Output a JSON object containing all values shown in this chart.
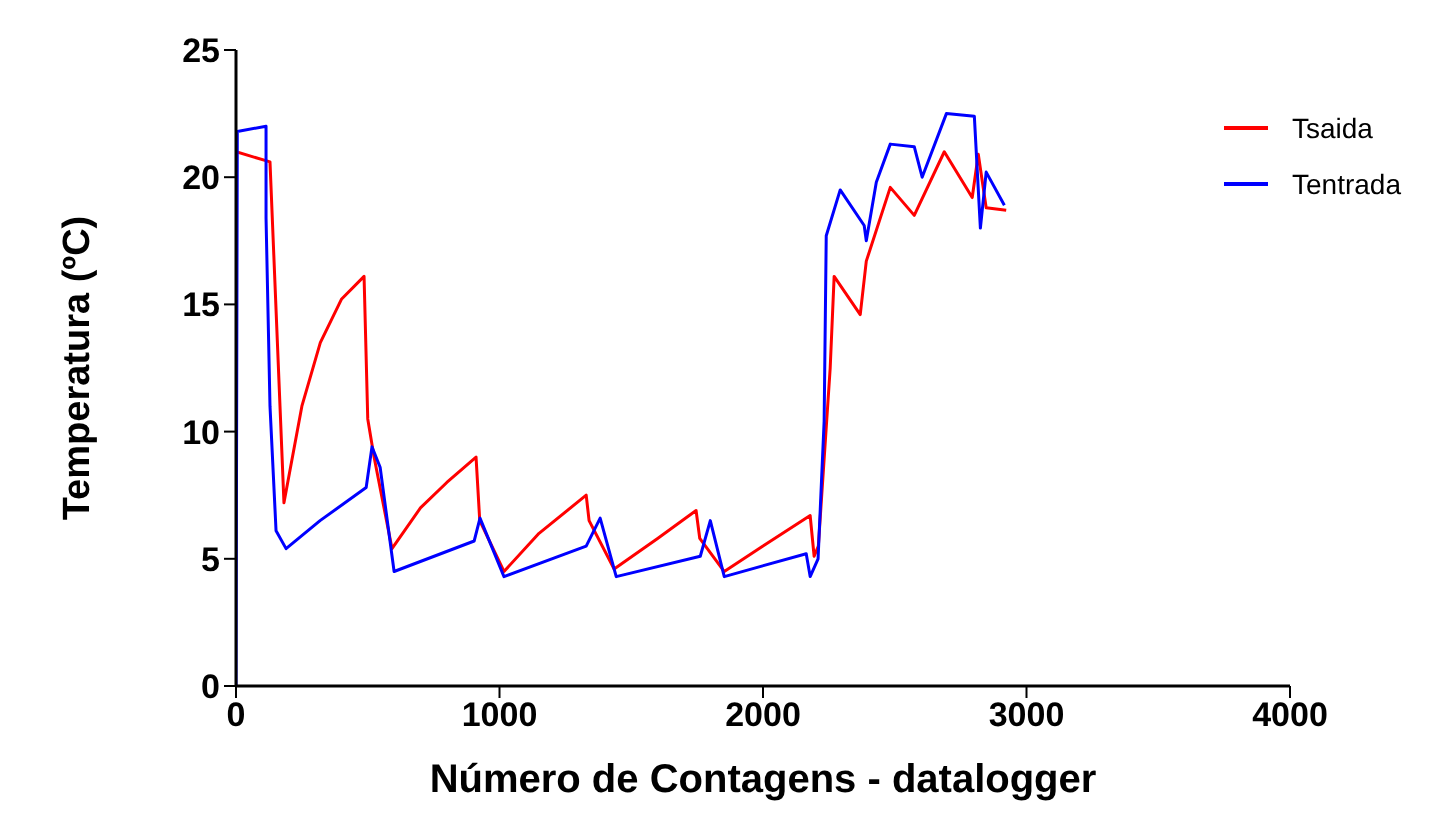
{
  "chart_data": {
    "type": "line",
    "xlabel": "Número de Contagens - datalogger",
    "ylabel": "Temperatura (ºC)",
    "xlim": [
      0,
      4000
    ],
    "xticks": [
      0,
      1000,
      2000,
      3000,
      4000
    ],
    "ylim": [
      0,
      25
    ],
    "yticks": [
      0,
      5,
      10,
      15,
      20,
      25
    ],
    "legend": "right",
    "marker": "none",
    "line_style": "solid",
    "series": [
      {
        "name": "Tsaida",
        "color": "#ff0000",
        "x": [
          0,
          129,
          182,
          250,
          320,
          400,
          486,
          500,
          524,
          592,
          700,
          800,
          911,
          925,
          1017,
          1150,
          1329,
          1340,
          1435,
          1600,
          1746,
          1760,
          1853,
          2000,
          2179,
          2194,
          2210,
          2255,
          2270,
          2369,
          2392,
          2483,
          2574,
          2688,
          2794,
          2817,
          2847,
          2923
        ],
        "values": [
          21,
          20.6,
          7.2,
          11,
          13.5,
          15.2,
          16.1,
          10.5,
          9,
          5.4,
          7,
          8,
          9,
          6.5,
          4.5,
          6,
          7.5,
          6.5,
          4.6,
          5.8,
          6.9,
          5.8,
          4.5,
          5.5,
          6.7,
          5.1,
          5.5,
          12.5,
          16.1,
          14.6,
          16.7,
          19.6,
          18.5,
          21,
          19.2,
          20.9,
          18.8,
          18.7
        ]
      },
      {
        "name": "Tentrada",
        "color": "#0000ff",
        "x": [
          0,
          5,
          114,
          114,
          129,
          152,
          190,
          319,
          494,
          516,
          547,
          600,
          904,
          926,
          1017,
          1329,
          1382,
          1443,
          1762,
          1800,
          1853,
          2164,
          2179,
          2209,
          2232,
          2240,
          2293,
          2384,
          2392,
          2430,
          2483,
          2574,
          2604,
          2696,
          2802,
          2825,
          2847,
          2916
        ],
        "values": [
          0,
          21.8,
          22,
          18.4,
          11,
          6.1,
          5.4,
          6.5,
          7.8,
          9.4,
          8.6,
          4.5,
          5.7,
          6.6,
          4.3,
          5.5,
          6.6,
          4.3,
          5.1,
          6.5,
          4.3,
          5.2,
          4.3,
          5,
          10.4,
          17.7,
          19.5,
          18.1,
          17.5,
          19.8,
          21.3,
          21.2,
          20,
          22.5,
          22.4,
          18,
          20.2,
          18.9
        ]
      }
    ]
  }
}
